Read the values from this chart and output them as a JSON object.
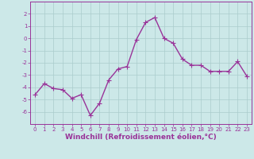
{
  "x": [
    0,
    1,
    2,
    3,
    4,
    5,
    6,
    7,
    8,
    9,
    10,
    11,
    12,
    13,
    14,
    15,
    16,
    17,
    18,
    19,
    20,
    21,
    22,
    23
  ],
  "y": [
    -4.6,
    -3.7,
    -4.1,
    -4.2,
    -4.9,
    -4.6,
    -6.3,
    -5.3,
    -3.4,
    -2.5,
    -2.3,
    -0.1,
    1.3,
    1.7,
    0.0,
    -0.4,
    -1.7,
    -2.2,
    -2.2,
    -2.7,
    -2.7,
    -2.7,
    -1.9,
    -3.1
  ],
  "line_color": "#993399",
  "marker": "D",
  "marker_size": 2.0,
  "bg_color": "#cce8e8",
  "grid_color": "#aacccc",
  "xlabel": "Windchill (Refroidissement éolien,°C)",
  "xlabel_color": "#993399",
  "xlim": [
    -0.5,
    23.5
  ],
  "ylim": [
    -7,
    3
  ],
  "yticks": [
    -6,
    -5,
    -4,
    -3,
    -2,
    -1,
    0,
    1,
    2
  ],
  "xticks": [
    0,
    1,
    2,
    3,
    4,
    5,
    6,
    7,
    8,
    9,
    10,
    11,
    12,
    13,
    14,
    15,
    16,
    17,
    18,
    19,
    20,
    21,
    22,
    23
  ],
  "tick_color": "#993399",
  "tick_fontsize": 5.0,
  "xlabel_fontsize": 6.5,
  "spine_color": "#993399",
  "line_width": 1.0
}
